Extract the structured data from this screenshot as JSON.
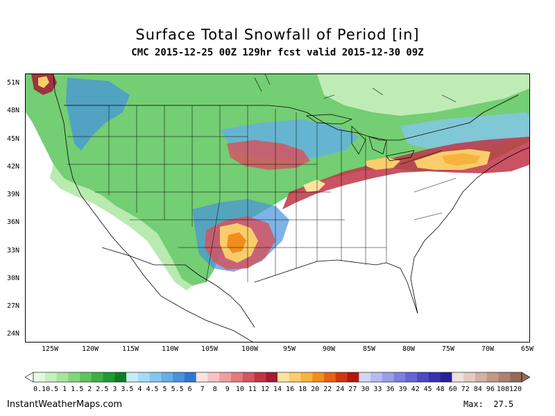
{
  "title": "Surface Total Snowfall of Period [in]",
  "subtitle": "CMC 2015-12-25 00Z 129hr fcst valid 2015-12-30 09Z",
  "latitude_labels": [
    "51N",
    "48N",
    "45N",
    "42N",
    "39N",
    "36N",
    "33N",
    "30N",
    "27N",
    "24N"
  ],
  "longitude_labels": [
    "125W",
    "120W",
    "115W",
    "110W",
    "105W",
    "100W",
    "95W",
    "90W",
    "85W",
    "80W",
    "75W",
    "70W",
    "65W"
  ],
  "colorbar": {
    "labels": [
      "0.1",
      "0.5",
      "1",
      "1.5",
      "2",
      "2.5",
      "3",
      "3.5",
      "4",
      "4.5",
      "5",
      "5.5",
      "6",
      "7",
      "8",
      "9",
      "10",
      "11",
      "12",
      "14",
      "16",
      "18",
      "20",
      "22",
      "24",
      "27",
      "30",
      "33",
      "36",
      "39",
      "42",
      "45",
      "48",
      "60",
      "72",
      "84",
      "96",
      "108",
      "120"
    ],
    "colors": [
      "#e5f9e0",
      "#c8f0bd",
      "#a7e59b",
      "#82d67a",
      "#5cc65a",
      "#3bb143",
      "#1f9a34",
      "#0d7d25",
      "#c7ecf7",
      "#a5dcf2",
      "#83c7ee",
      "#63afe7",
      "#4793de",
      "#2f76d0",
      "#fbe3e2",
      "#f8c2c2",
      "#f09ea0",
      "#e37a7e",
      "#d45560",
      "#c13447",
      "#a51933",
      "#fde39f",
      "#f9cd6b",
      "#f6b33e",
      "#f28c1d",
      "#e86114",
      "#d33510",
      "#b5160f",
      "#d3d6f1",
      "#b6bbee",
      "#989ee8",
      "#7c80e0",
      "#6464d6",
      "#4f48c7",
      "#3a31b3",
      "#27209a",
      "#eee1da",
      "#e2cbc0",
      "#d2b2a5",
      "#c09989",
      "#ad806f",
      "#966958"
    ]
  },
  "footer": {
    "source": "InstantWeatherMaps.com",
    "max_label": "Max:",
    "max_value": "27.5"
  }
}
